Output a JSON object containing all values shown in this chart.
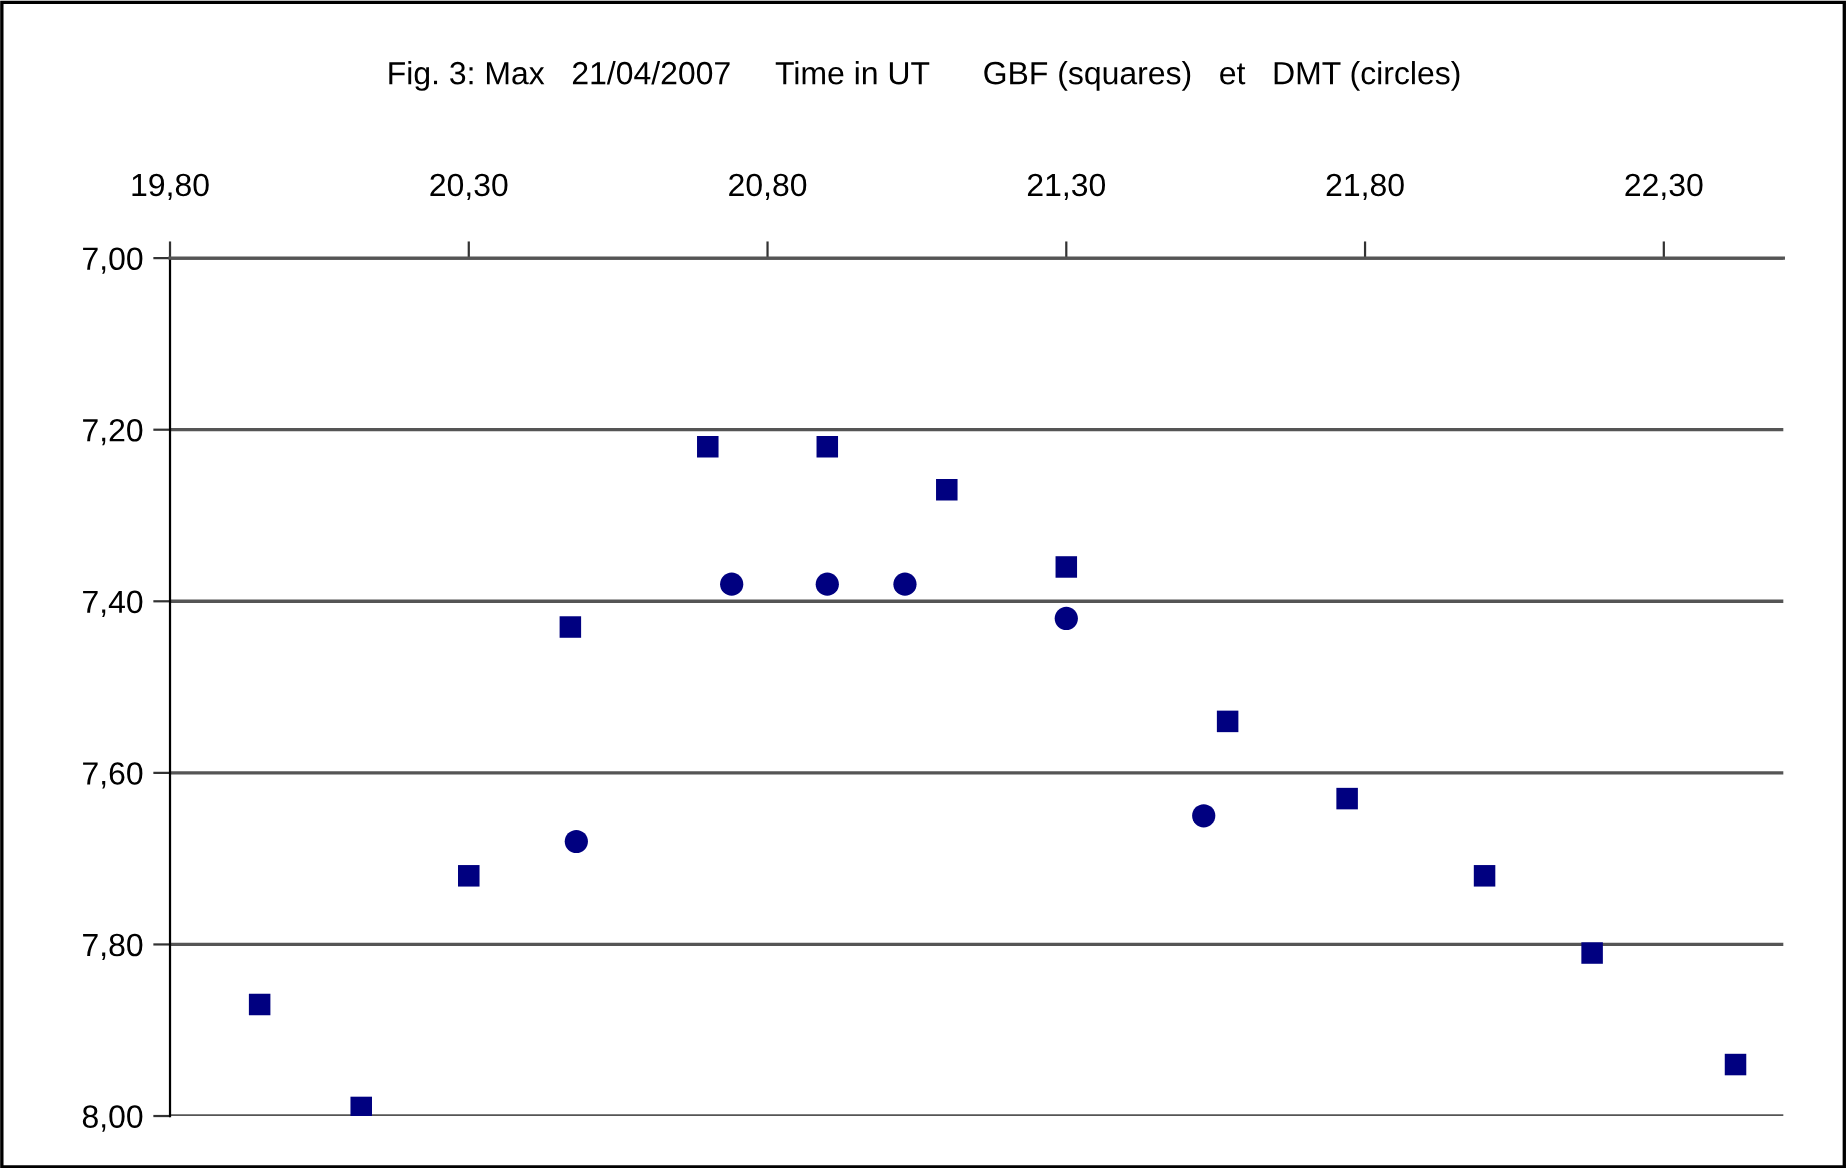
{
  "chart_data": {
    "type": "scatter",
    "title": "Fig. 3: Max   21/04/2007     Time in UT      GBF (squares)   et   DMT (circles)",
    "series": [
      {
        "color": "#000080",
        "marker": "square",
        "x": [
          19.95,
          20.12,
          20.3,
          20.47,
          20.7,
          20.9,
          21.1,
          21.3,
          21.57,
          21.77,
          22.0,
          22.18,
          22.42
        ],
        "values": [
          7.87,
          7.99,
          7.72,
          7.43,
          7.22,
          7.22,
          7.27,
          7.36,
          7.54,
          7.63,
          7.72,
          7.81,
          7.94
        ]
      },
      {
        "color": "#000080",
        "marker": "circle",
        "x": [
          20.48,
          20.74,
          20.9,
          21.03,
          21.3,
          21.53
        ],
        "values": [
          7.68,
          7.38,
          7.38,
          7.38,
          7.42,
          7.65
        ]
      }
    ],
    "xlim": [
      19.8,
      22.5
    ],
    "xticks": [
      {
        "value": 19.8,
        "label": "19,80"
      },
      {
        "value": 20.3,
        "label": "20,30"
      },
      {
        "value": 20.8,
        "label": "20,80"
      },
      {
        "value": 21.3,
        "label": "21,30"
      },
      {
        "value": 21.8,
        "label": "21,80"
      },
      {
        "value": 22.3,
        "label": "22,30"
      }
    ],
    "ylim": [
      8.0,
      7.0
    ],
    "yticks": [
      {
        "value": 7.0,
        "label": "7,00"
      },
      {
        "value": 7.2,
        "label": "7,20"
      },
      {
        "value": 7.4,
        "label": "7,40"
      },
      {
        "value": 7.6,
        "label": "7,60"
      },
      {
        "value": 7.8,
        "label": "7,80"
      },
      {
        "value": 8.0,
        "label": "8,00"
      }
    ],
    "grid": "y"
  }
}
